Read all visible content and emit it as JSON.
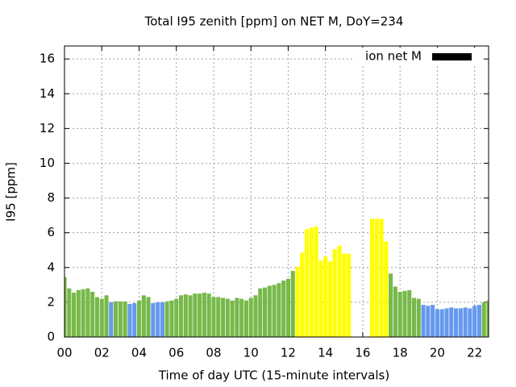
{
  "chart_data": {
    "type": "bar",
    "title": "Total I95 zenith [ppm] on NET M, DoY=234",
    "xlabel": "Time of day UTC (15-minute intervals)",
    "ylabel": "I95 [ppm]",
    "x": [
      0,
      0.25,
      0.5,
      0.75,
      1,
      1.25,
      1.5,
      1.75,
      2,
      2.25,
      2.5,
      2.75,
      3,
      3.25,
      3.5,
      3.75,
      4,
      4.25,
      4.5,
      4.75,
      5,
      5.25,
      5.5,
      5.75,
      6,
      6.25,
      6.5,
      6.75,
      7,
      7.25,
      7.5,
      7.75,
      8,
      8.25,
      8.5,
      8.75,
      9,
      9.25,
      9.5,
      9.75,
      10,
      10.25,
      10.5,
      10.75,
      11,
      11.25,
      11.5,
      11.75,
      12,
      12.25,
      12.5,
      12.75,
      13,
      13.25,
      13.5,
      13.75,
      14,
      14.25,
      14.5,
      14.75,
      15,
      15.25,
      15.5,
      15.75,
      16,
      16.25,
      16.5,
      16.75,
      17,
      17.25,
      17.5,
      17.75,
      18,
      18.25,
      18.5,
      18.75,
      19,
      19.25,
      19.5,
      19.75,
      20,
      20.25,
      20.5,
      20.75,
      21,
      21.25,
      21.5,
      21.75,
      22,
      22.25,
      22.5,
      22.75
    ],
    "series": [
      {
        "name": "ion net M",
        "color": "#000000",
        "values": [
          3.45,
          2.8,
          2.55,
          2.7,
          2.75,
          2.8,
          2.6,
          2.3,
          2.2,
          2.4,
          2.0,
          2.05,
          2.05,
          2.05,
          1.9,
          1.95,
          2.1,
          2.4,
          2.3,
          1.95,
          2.0,
          2.0,
          2.05,
          2.1,
          2.2,
          2.4,
          2.45,
          2.4,
          2.5,
          2.5,
          2.55,
          2.5,
          2.3,
          2.3,
          2.25,
          2.2,
          2.1,
          2.25,
          2.2,
          2.1,
          2.25,
          2.4,
          2.8,
          2.85,
          2.95,
          3.0,
          3.1,
          3.25,
          3.35,
          3.8,
          4.05,
          4.85,
          6.2,
          6.3,
          6.35,
          4.4,
          4.65,
          4.35,
          5.05,
          5.25,
          4.8,
          4.8,
          null,
          null,
          null,
          null,
          6.8,
          6.8,
          6.8,
          5.5,
          3.65,
          2.9,
          2.6,
          2.65,
          2.7,
          2.25,
          2.2,
          1.85,
          1.8,
          1.85,
          1.6,
          1.6,
          1.65,
          1.7,
          1.65,
          1.65,
          1.7,
          1.65,
          1.8,
          1.85,
          2.0,
          2.1
        ],
        "bar_colors": [
          "#77b94a",
          "#77b94a",
          "#77b94a",
          "#77b94a",
          "#77b94a",
          "#77b94a",
          "#77b94a",
          "#77b94a",
          "#77b94a",
          "#77b94a",
          "#6699ee",
          "#77b94a",
          "#77b94a",
          "#77b94a",
          "#6699ee",
          "#6699ee",
          "#77b94a",
          "#77b94a",
          "#77b94a",
          "#6699ee",
          "#6699ee",
          "#6699ee",
          "#77b94a",
          "#77b94a",
          "#77b94a",
          "#77b94a",
          "#77b94a",
          "#77b94a",
          "#77b94a",
          "#77b94a",
          "#77b94a",
          "#77b94a",
          "#77b94a",
          "#77b94a",
          "#77b94a",
          "#77b94a",
          "#77b94a",
          "#77b94a",
          "#77b94a",
          "#77b94a",
          "#77b94a",
          "#77b94a",
          "#77b94a",
          "#77b94a",
          "#77b94a",
          "#77b94a",
          "#77b94a",
          "#77b94a",
          "#77b94a",
          "#77b94a",
          "#ffff00",
          "#ffff00",
          "#ffff00",
          "#ffff00",
          "#ffff00",
          "#ffff00",
          "#ffff00",
          "#ffff00",
          "#ffff00",
          "#ffff00",
          "#ffff00",
          "#ffff00",
          null,
          null,
          null,
          null,
          "#ffff00",
          "#ffff00",
          "#ffff00",
          "#ffff00",
          "#77b94a",
          "#77b94a",
          "#77b94a",
          "#77b94a",
          "#77b94a",
          "#77b94a",
          "#77b94a",
          "#6699ee",
          "#6699ee",
          "#6699ee",
          "#6699ee",
          "#6699ee",
          "#6699ee",
          "#6699ee",
          "#6699ee",
          "#6699ee",
          "#6699ee",
          "#6699ee",
          "#6699ee",
          "#6699ee",
          "#77b94a",
          "#77b94a"
        ]
      }
    ],
    "xlim": [
      0,
      22.75
    ],
    "ylim": [
      0,
      16.75
    ],
    "xticks": [
      {
        "value": 0,
        "label": "00"
      },
      {
        "value": 2,
        "label": "02"
      },
      {
        "value": 4,
        "label": "04"
      },
      {
        "value": 6,
        "label": "06"
      },
      {
        "value": 8,
        "label": "08"
      },
      {
        "value": 10,
        "label": "10"
      },
      {
        "value": 12,
        "label": "12"
      },
      {
        "value": 14,
        "label": "14"
      },
      {
        "value": 16,
        "label": "16"
      },
      {
        "value": 18,
        "label": "18"
      },
      {
        "value": 20,
        "label": "20"
      },
      {
        "value": 22,
        "label": "22"
      }
    ],
    "yticks": [
      0,
      2,
      4,
      6,
      8,
      10,
      12,
      14,
      16
    ],
    "grid": true,
    "legend": "top-right"
  }
}
